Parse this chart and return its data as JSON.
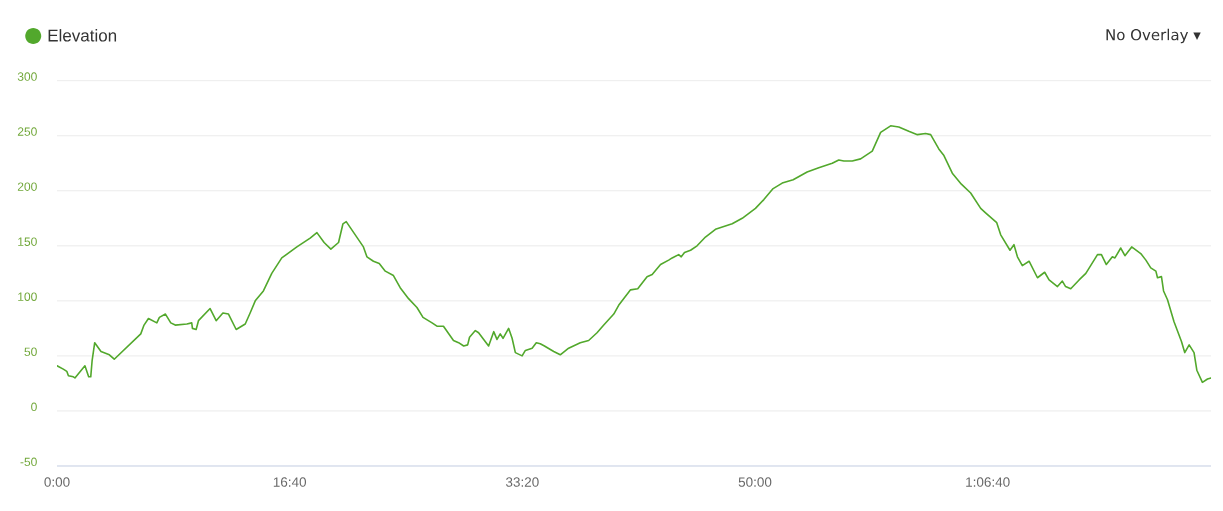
{
  "chart_data": {
    "type": "line",
    "x": [
      0,
      27,
      42,
      49,
      70,
      77,
      120,
      136,
      145,
      151,
      162,
      189,
      225,
      246,
      360,
      374,
      393,
      429,
      440,
      466,
      489,
      508,
      558,
      579,
      582,
      598,
      608,
      658,
      684,
      713,
      737,
      770,
      809,
      830,
      852,
      887,
      923,
      966,
      1031,
      1088,
      1117,
      1148,
      1177,
      1210,
      1229,
      1243,
      1317,
      1332,
      1360,
      1385,
      1411,
      1446,
      1475,
      1511,
      1547,
      1573,
      1612,
      1633,
      1661,
      1704,
      1726,
      1748,
      1765,
      1773,
      1798,
      1812,
      1855,
      1877,
      1891,
      1905,
      1917,
      1941,
      1956,
      1970,
      1999,
      2013,
      2042,
      2060,
      2077,
      2095,
      2135,
      2163,
      2199,
      2249,
      2285,
      2321,
      2350,
      2393,
      2414,
      2465,
      2496,
      2536,
      2558,
      2594,
      2629,
      2644,
      2672,
      2683,
      2697,
      2723,
      2751,
      2787,
      2830,
      2902,
      2945,
      3002,
      3038,
      3078,
      3117,
      3164,
      3224,
      3274,
      3332,
      3360,
      3382,
      3418,
      3454,
      3504,
      3540,
      3583,
      3618,
      3661,
      3698,
      3733,
      3755,
      3790,
      3812,
      3848,
      3887,
      3927,
      3970,
      3991,
      4039,
      4056,
      4096,
      4113,
      4128,
      4149,
      4178,
      4214,
      4245,
      4264,
      4300,
      4321,
      4335,
      4357,
      4393,
      4422,
      4472,
      4489,
      4510,
      4536,
      4547,
      4572,
      4590,
      4619,
      4658,
      4680,
      4701,
      4723,
      4730,
      4747,
      4756,
      4773,
      4801,
      4833,
      4847,
      4866,
      4887,
      4899,
      4923,
      4945,
      4960
    ],
    "series": [
      {
        "name": "Elevation",
        "color": "#52a82c",
        "values": [
          41,
          38,
          36,
          32,
          31,
          30,
          41,
          31,
          31,
          46,
          62,
          54,
          51,
          47,
          70,
          78,
          84,
          80,
          85,
          88,
          80,
          78,
          79,
          80,
          75,
          74,
          82,
          93,
          82,
          89,
          88,
          74,
          79,
          89,
          100,
          109,
          125,
          139,
          149,
          157,
          162,
          153,
          147,
          153,
          170,
          172,
          149,
          140,
          136,
          134,
          127,
          123,
          112,
          102,
          94,
          85,
          80,
          77,
          77,
          64,
          62,
          59,
          60,
          67,
          73,
          71,
          59,
          72,
          65,
          70,
          66,
          75,
          66,
          53,
          50,
          55,
          57,
          62,
          61,
          59,
          54,
          51,
          57,
          62,
          64,
          71,
          78,
          88,
          96,
          110,
          111,
          122,
          124,
          133,
          137,
          139,
          142,
          140,
          144,
          146,
          150,
          158,
          165,
          170,
          175,
          184,
          192,
          202,
          207,
          210,
          217,
          221,
          225,
          228,
          227,
          227,
          229,
          236,
          253,
          259,
          258,
          254,
          251,
          252,
          251,
          238,
          232,
          216,
          206,
          198,
          184,
          180,
          171,
          160,
          146,
          151,
          140,
          132,
          136,
          121,
          126,
          119,
          113,
          118,
          113,
          111,
          119,
          125,
          142,
          142,
          133,
          140,
          139,
          148,
          141,
          149,
          143,
          137,
          130,
          127,
          121,
          122,
          109,
          101,
          81,
          63,
          53,
          60,
          53,
          37,
          26,
          29,
          30
        ]
      }
    ],
    "xlim": [
      0,
      4960
    ],
    "ylim": [
      -50,
      300
    ],
    "xticks": [
      {
        "value": 0,
        "label": "0:00"
      },
      {
        "value": 1000,
        "label": "16:40"
      },
      {
        "value": 2000,
        "label": "33:20"
      },
      {
        "value": 3000,
        "label": "50:00"
      },
      {
        "value": 4000,
        "label": "1:06:40"
      }
    ],
    "yticks": [
      -50,
      0,
      50,
      100,
      150,
      200,
      250,
      300
    ],
    "grid": "y",
    "legend": "top left",
    "marker": "none",
    "line_style": "solid",
    "annotations": [
      "No Overlay ▾"
    ]
  }
}
